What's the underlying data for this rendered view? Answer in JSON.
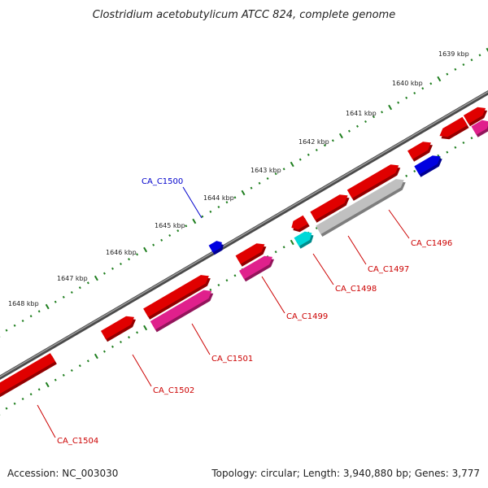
{
  "title": "Clostridium acetobutylicum ATCC 824, complete genome",
  "footer": {
    "accession": "Accession: NC_003030",
    "summary": "Topology: circular; Length: 3,940,880 bp; Genes: 3,777"
  },
  "colors": {
    "backbone": "#6e6e6e",
    "ruler": "#1e7e1e",
    "label_red": "#cc0000",
    "label_blue": "#0000cc"
  },
  "ticks": [
    {
      "label": "1639 kbp"
    },
    {
      "label": "1640 kbp"
    },
    {
      "label": "1641 kbp"
    },
    {
      "label": "1642 kbp"
    },
    {
      "label": "1643 kbp"
    },
    {
      "label": "1644 kbp"
    },
    {
      "label": "1645 kbp"
    },
    {
      "label": "1646 kbp"
    },
    {
      "label": "1647 kbp"
    },
    {
      "label": "1648 kbp"
    }
  ],
  "genes": [
    {
      "id": "CA_C1496",
      "color": "#e00000",
      "labeled": true
    },
    {
      "id": "CA_C1497",
      "color": "#e00000",
      "labeled": true
    },
    {
      "id": "CA_C1498",
      "color": "#e00000",
      "labeled": true
    },
    {
      "id": "CA_C1499",
      "color": "#e00000",
      "labeled": true
    },
    {
      "id": "CA_C1500",
      "color": "#0000e0",
      "labeled": true
    },
    {
      "id": "CA_C1501",
      "color": "#e00000",
      "labeled": true
    },
    {
      "id": "CA_C1502",
      "color": "#e00000",
      "labeled": true
    },
    {
      "id": "CA_C1504",
      "color": "#e00000",
      "labeled": true
    }
  ],
  "legend_colors": {
    "cds_pink": "#e0208c",
    "cds_cyan": "#00d8d8",
    "cds_gray": "#c0c0c0"
  }
}
